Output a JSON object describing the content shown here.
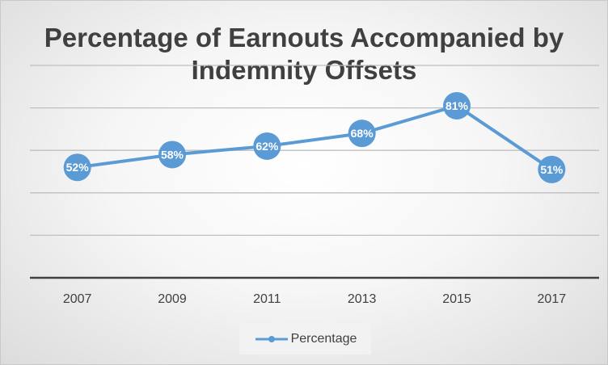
{
  "chart_data": {
    "type": "line",
    "title": "Percentage of Earnouts Accompanied by Indemnity Offsets",
    "categories": [
      "2007",
      "2009",
      "2011",
      "2013",
      "2015",
      "2017"
    ],
    "series": [
      {
        "name": "Percentage",
        "values": [
          52,
          58,
          62,
          68,
          81,
          51
        ],
        "labels": [
          "52%",
          "58%",
          "62%",
          "68%",
          "81%",
          "51%"
        ],
        "color": "#5b9bd5"
      }
    ],
    "ylim": [
      0,
      100
    ],
    "grid": true,
    "legend_position": "bottom"
  }
}
